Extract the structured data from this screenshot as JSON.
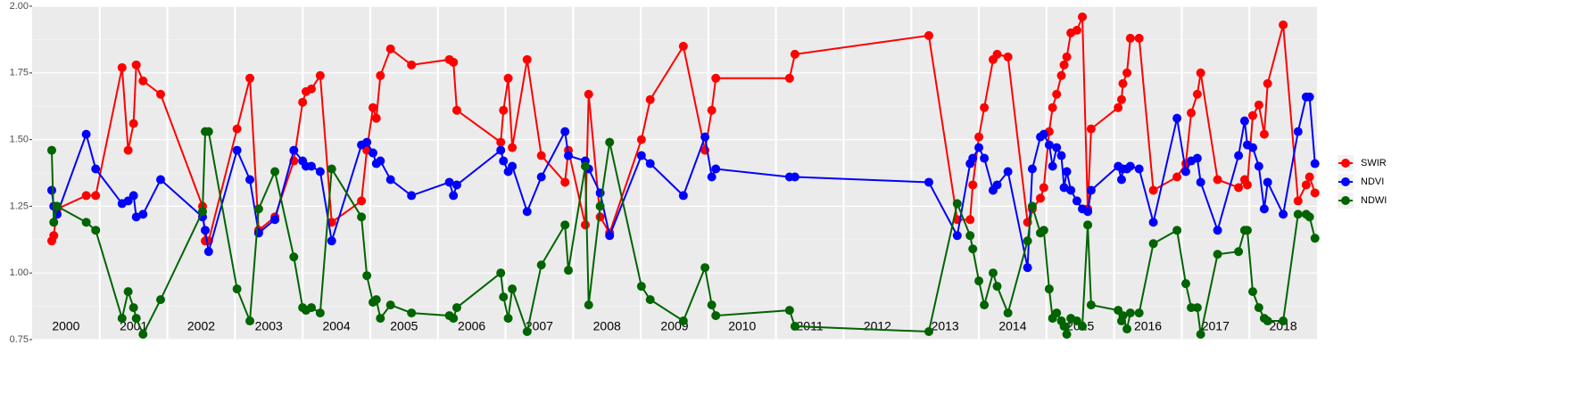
{
  "chart_data": {
    "type": "line",
    "x": [
      2000.29,
      2000.32,
      2000.37,
      2000.8,
      2000.94,
      2001.33,
      2001.42,
      2001.5,
      2001.54,
      2001.64,
      2001.9,
      2002.52,
      2002.56,
      2002.61,
      2003.03,
      2003.22,
      2003.35,
      2003.59,
      2003.87,
      2004.0,
      2004.05,
      2004.13,
      2004.26,
      2004.43,
      2004.87,
      2004.95,
      2005.04,
      2005.09,
      2005.15,
      2005.3,
      2005.61,
      2006.17,
      2006.23,
      2006.28,
      2006.93,
      2006.97,
      2007.04,
      2007.1,
      2007.32,
      2007.53,
      2007.88,
      2007.93,
      2008.18,
      2008.23,
      2008.4,
      2008.54,
      2009.01,
      2009.14,
      2009.63,
      2009.95,
      2010.05,
      2010.11,
      2011.2,
      2011.28,
      2013.26,
      2013.68,
      2013.87,
      2013.91,
      2014.0,
      2014.08,
      2014.21,
      2014.27,
      2014.43,
      2014.72,
      2014.79,
      2014.91,
      2014.96,
      2015.04,
      2015.09,
      2015.15,
      2015.22,
      2015.26,
      2015.3,
      2015.36,
      2015.45,
      2015.53,
      2015.61,
      2015.66,
      2016.06,
      2016.11,
      2016.13,
      2016.19,
      2016.24,
      2016.37,
      2016.58,
      2016.93,
      2017.06,
      2017.14,
      2017.23,
      2017.28,
      2017.53,
      2017.84,
      2017.93,
      2017.97,
      2018.05,
      2018.14,
      2018.22,
      2018.27,
      2018.5,
      2018.72,
      2018.84,
      2018.89,
      2018.97
    ],
    "series": [
      {
        "name": "SWIR",
        "color": "#ff0000",
        "values": [
          1.12,
          1.14,
          1.24,
          1.29,
          1.29,
          1.77,
          1.46,
          1.56,
          1.78,
          1.72,
          1.67,
          1.25,
          1.12,
          1.12,
          1.54,
          1.73,
          1.16,
          1.21,
          1.42,
          1.64,
          1.68,
          1.69,
          1.74,
          1.19,
          1.27,
          1.46,
          1.62,
          1.58,
          1.74,
          1.84,
          1.78,
          1.8,
          1.79,
          1.61,
          1.49,
          1.61,
          1.73,
          1.47,
          1.8,
          1.44,
          1.34,
          1.46,
          1.18,
          1.67,
          1.21,
          1.15,
          1.5,
          1.65,
          1.85,
          1.46,
          1.61,
          1.73,
          1.73,
          1.82,
          1.89,
          1.2,
          1.2,
          1.33,
          1.51,
          1.62,
          1.8,
          1.82,
          1.81,
          1.19,
          1.24,
          1.28,
          1.32,
          1.53,
          1.62,
          1.67,
          1.74,
          1.78,
          1.81,
          1.9,
          1.91,
          1.96,
          1.24,
          1.54,
          1.62,
          1.65,
          1.71,
          1.75,
          1.88,
          1.88,
          1.31,
          1.36,
          1.41,
          1.6,
          1.67,
          1.75,
          1.35,
          1.32,
          1.35,
          1.33,
          1.59,
          1.63,
          1.52,
          1.71,
          1.93,
          1.27,
          1.33,
          1.36,
          1.3
        ]
      },
      {
        "name": "NDVI",
        "color": "#0000ff",
        "values": [
          1.31,
          1.25,
          1.22,
          1.52,
          1.39,
          1.26,
          1.27,
          1.29,
          1.21,
          1.22,
          1.35,
          1.21,
          1.16,
          1.08,
          1.46,
          1.35,
          1.15,
          1.2,
          1.46,
          1.42,
          1.4,
          1.4,
          1.38,
          1.12,
          1.48,
          1.49,
          1.45,
          1.41,
          1.42,
          1.35,
          1.29,
          1.34,
          1.29,
          1.33,
          1.46,
          1.42,
          1.38,
          1.4,
          1.23,
          1.36,
          1.53,
          1.44,
          1.42,
          1.39,
          1.3,
          1.14,
          1.44,
          1.41,
          1.29,
          1.51,
          1.36,
          1.39,
          1.36,
          1.36,
          1.34,
          1.14,
          1.41,
          1.43,
          1.47,
          1.43,
          1.31,
          1.33,
          1.38,
          1.02,
          1.39,
          1.51,
          1.52,
          1.48,
          1.4,
          1.47,
          1.44,
          1.32,
          1.38,
          1.31,
          1.27,
          1.24,
          1.23,
          1.31,
          1.4,
          1.35,
          1.39,
          1.39,
          1.4,
          1.39,
          1.19,
          1.58,
          1.38,
          1.42,
          1.43,
          1.34,
          1.16,
          1.44,
          1.57,
          1.48,
          1.47,
          1.4,
          1.24,
          1.34,
          1.22,
          1.53,
          1.66,
          1.66,
          1.41
        ]
      },
      {
        "name": "NDWI",
        "color": "#006400",
        "values": [
          1.46,
          1.19,
          1.25,
          1.19,
          1.16,
          0.83,
          0.93,
          0.87,
          0.83,
          0.77,
          0.9,
          1.23,
          1.53,
          1.53,
          0.94,
          0.82,
          1.24,
          1.38,
          1.06,
          0.87,
          0.86,
          0.87,
          0.85,
          1.39,
          1.21,
          0.99,
          0.89,
          0.9,
          0.83,
          0.88,
          0.85,
          0.84,
          0.83,
          0.87,
          1.0,
          0.91,
          0.83,
          0.94,
          0.78,
          1.03,
          1.18,
          1.01,
          1.4,
          0.88,
          1.25,
          1.49,
          0.95,
          0.9,
          0.82,
          1.02,
          0.88,
          0.84,
          0.86,
          0.8,
          0.78,
          1.26,
          1.14,
          1.09,
          0.97,
          0.88,
          1.0,
          0.95,
          0.85,
          1.12,
          1.25,
          1.15,
          1.16,
          0.94,
          0.83,
          0.85,
          0.82,
          0.8,
          0.77,
          0.83,
          0.82,
          0.8,
          1.18,
          0.88,
          0.86,
          0.82,
          0.84,
          0.79,
          0.85,
          0.85,
          1.11,
          1.16,
          0.96,
          0.87,
          0.87,
          0.77,
          1.07,
          1.08,
          1.16,
          1.16,
          0.93,
          0.87,
          0.83,
          0.82,
          0.82,
          1.22,
          1.22,
          1.21,
          1.13
        ]
      }
    ],
    "xlim": [
      2000,
      2019
    ],
    "xticks": [
      2001,
      2002,
      2003,
      2004,
      2005,
      2006,
      2007,
      2008,
      2009,
      2010,
      2011,
      2012,
      2013,
      2014,
      2015,
      2016,
      2017,
      2018
    ],
    "ylim": [
      0.75,
      2.0
    ],
    "yticks": [
      {
        "value": 0.75,
        "label": "0.75"
      },
      {
        "value": 1.0,
        "label": "1.00"
      },
      {
        "value": 1.25,
        "label": "1.25"
      },
      {
        "value": 1.5,
        "label": "1.50"
      },
      {
        "value": 1.75,
        "label": "1.75"
      },
      {
        "value": 2.0,
        "label": "2.00"
      }
    ],
    "grid": true,
    "legend": "right",
    "annotations": [
      {
        "text": "2000",
        "x": 2000.5
      },
      {
        "text": "2001",
        "x": 2001.5
      },
      {
        "text": "2002",
        "x": 2002.5
      },
      {
        "text": "2003",
        "x": 2003.5
      },
      {
        "text": "2004",
        "x": 2004.5
      },
      {
        "text": "2005",
        "x": 2005.5
      },
      {
        "text": "2006",
        "x": 2006.5
      },
      {
        "text": "2007",
        "x": 2007.5
      },
      {
        "text": "2008",
        "x": 2008.5
      },
      {
        "text": "2009",
        "x": 2009.5
      },
      {
        "text": "2010",
        "x": 2010.5
      },
      {
        "text": "2011",
        "x": 2011.5
      },
      {
        "text": "2012",
        "x": 2012.5
      },
      {
        "text": "2013",
        "x": 2013.5
      },
      {
        "text": "2014",
        "x": 2014.5
      },
      {
        "text": "2015",
        "x": 2015.5
      },
      {
        "text": "2016",
        "x": 2016.5
      },
      {
        "text": "2017",
        "x": 2017.5
      },
      {
        "text": "2018",
        "x": 2018.5
      }
    ]
  }
}
